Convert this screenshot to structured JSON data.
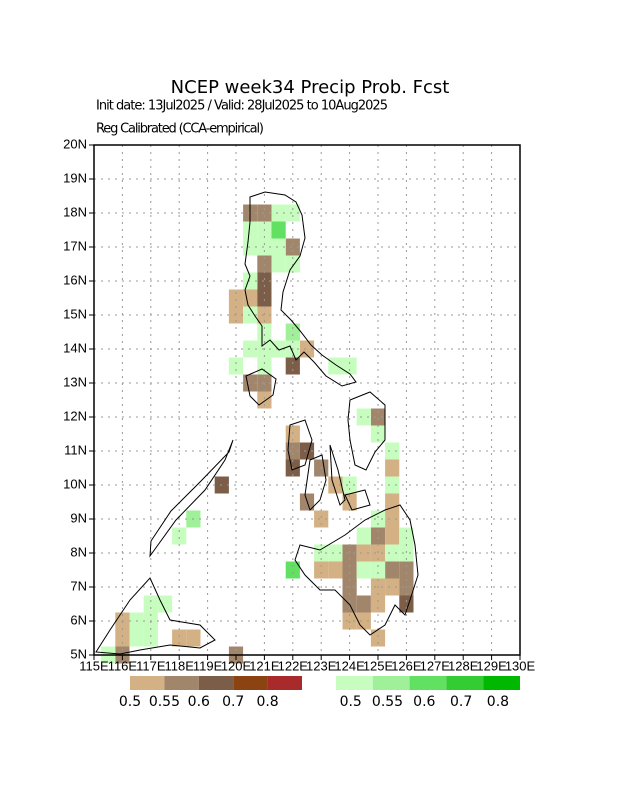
{
  "header": {
    "title": "NCEP week34 Precip Prob. Fcst",
    "subtitle": "Init date: 13Jul2025 / Valid: 28Jul2025 to 10Aug2025",
    "note": "Reg Calibrated (CCA-empirical)"
  },
  "map": {
    "lonlim": [
      115,
      130
    ],
    "latlim": [
      5,
      20
    ],
    "lonticks": [
      {
        "value": 115,
        "label": "115E"
      },
      {
        "value": 116,
        "label": "116E"
      },
      {
        "value": 117,
        "label": "117E"
      },
      {
        "value": 118,
        "label": "118E"
      },
      {
        "value": 119,
        "label": "119E"
      },
      {
        "value": 120,
        "label": "120E"
      },
      {
        "value": 121,
        "label": "121E"
      },
      {
        "value": 122,
        "label": "122E"
      },
      {
        "value": 123,
        "label": "123E"
      },
      {
        "value": 124,
        "label": "124E"
      },
      {
        "value": 125,
        "label": "125E"
      },
      {
        "value": 126,
        "label": "126E"
      },
      {
        "value": 127,
        "label": "127E"
      },
      {
        "value": 128,
        "label": "128E"
      },
      {
        "value": 129,
        "label": "129E"
      },
      {
        "value": 130,
        "label": "130E"
      }
    ],
    "latticks": [
      {
        "value": 5,
        "label": "5N"
      },
      {
        "value": 6,
        "label": "6N"
      },
      {
        "value": 7,
        "label": "7N"
      },
      {
        "value": 8,
        "label": "8N"
      },
      {
        "value": 9,
        "label": "9N"
      },
      {
        "value": 10,
        "label": "10N"
      },
      {
        "value": 11,
        "label": "11N"
      },
      {
        "value": 12,
        "label": "12N"
      },
      {
        "value": 13,
        "label": "13N"
      },
      {
        "value": 14,
        "label": "14N"
      },
      {
        "value": 15,
        "label": "15N"
      },
      {
        "value": 16,
        "label": "16N"
      },
      {
        "value": 17,
        "label": "17N"
      },
      {
        "value": 18,
        "label": "18N"
      },
      {
        "value": 19,
        "label": "19N"
      },
      {
        "value": 20,
        "label": "20N"
      }
    ],
    "grid": true,
    "below_cells": [
      {
        "lon": 120.5,
        "lat": 18,
        "prob": 0.55
      },
      {
        "lon": 121,
        "lat": 18,
        "prob": 0.55
      },
      {
        "lon": 122,
        "lat": 17,
        "prob": 0.55
      },
      {
        "lon": 121,
        "lat": 16.5,
        "prob": 0.55
      },
      {
        "lon": 121,
        "lat": 16,
        "prob": 0.6
      },
      {
        "lon": 120,
        "lat": 15.5,
        "prob": 0.5
      },
      {
        "lon": 120.5,
        "lat": 15.5,
        "prob": 0.5
      },
      {
        "lon": 121,
        "lat": 15.5,
        "prob": 0.6
      },
      {
        "lon": 120,
        "lat": 15,
        "prob": 0.5
      },
      {
        "lon": 121,
        "lat": 15,
        "prob": 0.5
      },
      {
        "lon": 122.5,
        "lat": 14,
        "prob": 0.5
      },
      {
        "lon": 122,
        "lat": 13.5,
        "prob": 0.6
      },
      {
        "lon": 120.5,
        "lat": 13,
        "prob": 0.55
      },
      {
        "lon": 121,
        "lat": 13,
        "prob": 0.55
      },
      {
        "lon": 121,
        "lat": 12.5,
        "prob": 0.5
      },
      {
        "lon": 125,
        "lat": 12,
        "prob": 0.55
      },
      {
        "lon": 122,
        "lat": 11.5,
        "prob": 0.5
      },
      {
        "lon": 122,
        "lat": 11,
        "prob": 0.55
      },
      {
        "lon": 122.5,
        "lat": 11,
        "prob": 0.6
      },
      {
        "lon": 122,
        "lat": 10.5,
        "prob": 0.6
      },
      {
        "lon": 123,
        "lat": 10.5,
        "prob": 0.55
      },
      {
        "lon": 125.5,
        "lat": 10.5,
        "prob": 0.5
      },
      {
        "lon": 123.5,
        "lat": 10,
        "prob": 0.5
      },
      {
        "lon": 119.5,
        "lat": 10,
        "prob": 0.6
      },
      {
        "lon": 122.5,
        "lat": 9.5,
        "prob": 0.55
      },
      {
        "lon": 124,
        "lat": 9.5,
        "prob": 0.5
      },
      {
        "lon": 125.5,
        "lat": 9.5,
        "prob": 0.5
      },
      {
        "lon": 123,
        "lat": 9,
        "prob": 0.5
      },
      {
        "lon": 125.5,
        "lat": 9,
        "prob": 0.5
      },
      {
        "lon": 125,
        "lat": 8.5,
        "prob": 0.55
      },
      {
        "lon": 125.5,
        "lat": 8.5,
        "prob": 0.5
      },
      {
        "lon": 124,
        "lat": 8,
        "prob": 0.55
      },
      {
        "lon": 124.5,
        "lat": 8,
        "prob": 0.5
      },
      {
        "lon": 125,
        "lat": 8,
        "prob": 0.5
      },
      {
        "lon": 123,
        "lat": 7.5,
        "prob": 0.5
      },
      {
        "lon": 123.5,
        "lat": 7.5,
        "prob": 0.5
      },
      {
        "lon": 124,
        "lat": 7.5,
        "prob": 0.55
      },
      {
        "lon": 125.5,
        "lat": 7.5,
        "prob": 0.55
      },
      {
        "lon": 126,
        "lat": 7.5,
        "prob": 0.55
      },
      {
        "lon": 124,
        "lat": 7,
        "prob": 0.55
      },
      {
        "lon": 125,
        "lat": 7,
        "prob": 0.5
      },
      {
        "lon": 125.5,
        "lat": 7,
        "prob": 0.5
      },
      {
        "lon": 126,
        "lat": 7,
        "prob": 0.55
      },
      {
        "lon": 124,
        "lat": 6.5,
        "prob": 0.55
      },
      {
        "lon": 124.5,
        "lat": 6.5,
        "prob": 0.55
      },
      {
        "lon": 125,
        "lat": 6.5,
        "prob": 0.5
      },
      {
        "lon": 126,
        "lat": 6.5,
        "prob": 0.6
      },
      {
        "lon": 124,
        "lat": 6,
        "prob": 0.5
      },
      {
        "lon": 124.5,
        "lat": 6,
        "prob": 0.5
      },
      {
        "lon": 125,
        "lat": 5.5,
        "prob": 0.5
      },
      {
        "lon": 116,
        "lat": 6,
        "prob": 0.5
      },
      {
        "lon": 116,
        "lat": 5.5,
        "prob": 0.5
      },
      {
        "lon": 118,
        "lat": 5.5,
        "prob": 0.5
      },
      {
        "lon": 118.5,
        "lat": 5.5,
        "prob": 0.5
      },
      {
        "lon": 116,
        "lat": 5,
        "prob": 0.55
      },
      {
        "lon": 120,
        "lat": 5,
        "prob": 0.55
      }
    ],
    "above_cells": [
      {
        "lon": 121.5,
        "lat": 18,
        "prob": 0.5
      },
      {
        "lon": 122,
        "lat": 18,
        "prob": 0.5
      },
      {
        "lon": 120.5,
        "lat": 17.5,
        "prob": 0.5
      },
      {
        "lon": 121,
        "lat": 17.5,
        "prob": 0.5
      },
      {
        "lon": 121.5,
        "lat": 17.5,
        "prob": 0.6
      },
      {
        "lon": 120.5,
        "lat": 17,
        "prob": 0.5
      },
      {
        "lon": 121,
        "lat": 17,
        "prob": 0.5
      },
      {
        "lon": 121.5,
        "lat": 17,
        "prob": 0.5
      },
      {
        "lon": 121.5,
        "lat": 16.5,
        "prob": 0.5
      },
      {
        "lon": 122,
        "lat": 16.5,
        "prob": 0.5
      },
      {
        "lon": 120.5,
        "lat": 16,
        "prob": 0.5
      },
      {
        "lon": 120.5,
        "lat": 15,
        "prob": 0.5
      },
      {
        "lon": 121,
        "lat": 14.5,
        "prob": 0.5
      },
      {
        "lon": 122,
        "lat": 14.5,
        "prob": 0.55
      },
      {
        "lon": 120.5,
        "lat": 14,
        "prob": 0.5
      },
      {
        "lon": 121,
        "lat": 14,
        "prob": 0.5
      },
      {
        "lon": 121.5,
        "lat": 14,
        "prob": 0.5
      },
      {
        "lon": 122,
        "lat": 14,
        "prob": 0.5
      },
      {
        "lon": 120,
        "lat": 13.5,
        "prob": 0.5
      },
      {
        "lon": 121,
        "lat": 13.5,
        "prob": 0.5
      },
      {
        "lon": 123.5,
        "lat": 13.5,
        "prob": 0.5
      },
      {
        "lon": 124,
        "lat": 13.5,
        "prob": 0.5
      },
      {
        "lon": 124.5,
        "lat": 12,
        "prob": 0.5
      },
      {
        "lon": 125,
        "lat": 11.5,
        "prob": 0.5
      },
      {
        "lon": 125.5,
        "lat": 11,
        "prob": 0.5
      },
      {
        "lon": 124,
        "lat": 10,
        "prob": 0.5
      },
      {
        "lon": 125.5,
        "lat": 10,
        "prob": 0.5
      },
      {
        "lon": 125,
        "lat": 9,
        "prob": 0.5
      },
      {
        "lon": 118.5,
        "lat": 9,
        "prob": 0.55
      },
      {
        "lon": 118,
        "lat": 8.5,
        "prob": 0.5
      },
      {
        "lon": 124.5,
        "lat": 8.5,
        "prob": 0.5
      },
      {
        "lon": 126,
        "lat": 8.5,
        "prob": 0.5
      },
      {
        "lon": 123,
        "lat": 8,
        "prob": 0.5
      },
      {
        "lon": 123.5,
        "lat": 8,
        "prob": 0.5
      },
      {
        "lon": 125.5,
        "lat": 8,
        "prob": 0.5
      },
      {
        "lon": 126,
        "lat": 8,
        "prob": 0.5
      },
      {
        "lon": 122,
        "lat": 7.5,
        "prob": 0.6
      },
      {
        "lon": 124.5,
        "lat": 7.5,
        "prob": 0.5
      },
      {
        "lon": 125,
        "lat": 7.5,
        "prob": 0.5
      },
      {
        "lon": 117,
        "lat": 6.5,
        "prob": 0.5
      },
      {
        "lon": 117.5,
        "lat": 6.5,
        "prob": 0.5
      },
      {
        "lon": 116.5,
        "lat": 6,
        "prob": 0.5
      },
      {
        "lon": 117,
        "lat": 6,
        "prob": 0.5
      },
      {
        "lon": 116.5,
        "lat": 5.5,
        "prob": 0.5
      },
      {
        "lon": 117,
        "lat": 5.5,
        "prob": 0.5
      },
      {
        "lon": 115.5,
        "lat": 5,
        "prob": 0.5
      }
    ]
  },
  "legend": {
    "below": {
      "levels": [
        0.5,
        0.55,
        0.6,
        0.7,
        0.8
      ],
      "colors": [
        "#d3b184",
        "#a2866c",
        "#7c5e48",
        "#8b4411",
        "#a82a2a"
      ]
    },
    "above": {
      "levels": [
        0.5,
        0.55,
        0.6,
        0.7,
        0.8
      ],
      "colors": [
        "#c8fdc0",
        "#a0f09a",
        "#62e062",
        "#33cc33",
        "#00b800"
      ]
    }
  }
}
